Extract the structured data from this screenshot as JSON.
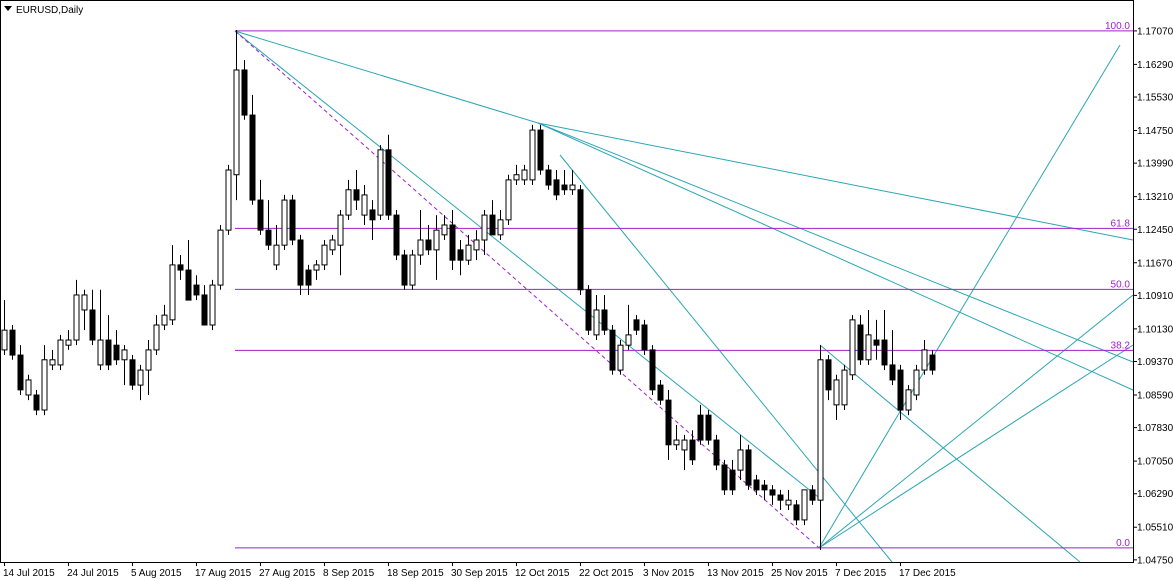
{
  "chart_data": {
    "type": "candlestick",
    "title": "EURUSD,Daily",
    "categories": [
      "14 Jul 2015",
      null,
      null,
      null,
      null,
      null,
      null,
      null,
      "24 Jul 2015",
      null,
      null,
      null,
      null,
      null,
      null,
      null,
      "5 Aug 2015",
      null,
      null,
      null,
      null,
      null,
      null,
      null,
      "17 Aug 2015",
      null,
      null,
      null,
      null,
      null,
      null,
      null,
      "27 Aug 2015",
      null,
      null,
      null,
      null,
      null,
      null,
      null,
      "8 Sep 2015",
      null,
      null,
      null,
      null,
      null,
      null,
      null,
      "18 Sep 2015",
      null,
      null,
      null,
      null,
      null,
      null,
      null,
      "30 Sep 2015",
      null,
      null,
      null,
      null,
      null,
      null,
      null,
      "12 Oct 2015",
      null,
      null,
      null,
      null,
      null,
      null,
      null,
      "22 Oct 2015",
      null,
      null,
      null,
      null,
      null,
      null,
      null,
      "3 Nov 2015",
      null,
      null,
      null,
      null,
      null,
      null,
      null,
      "13 Nov 2015",
      null,
      null,
      null,
      null,
      null,
      null,
      null,
      "25 Nov 2015",
      null,
      null,
      null,
      null,
      null,
      null,
      null,
      "7 Dec 2015",
      null,
      null,
      null,
      null,
      null,
      null,
      null,
      "17 Dec 2015",
      null,
      null,
      null,
      null
    ],
    "open": [
      1.0964,
      1.101,
      1.0952,
      1.0859,
      1.0859,
      1.0824,
      1.0929,
      1.0929,
      1.0975,
      1.0987,
      1.1057,
      1.1057,
      1.0929,
      1.0987,
      1.0975,
      1.0941,
      1.0941,
      1.0882,
      1.0917,
      1.0964,
      1.1022,
      1.1034,
      1.1162,
      1.115,
      1.1115,
      1.1092,
      1.1022,
      1.1115,
      1.1243,
      1.1372,
      1.1616,
      1.1511,
      1.1313,
      1.1243,
      1.1162,
      1.1208,
      1.1313,
      1.122,
      1.115,
      1.115,
      1.1162,
      1.1197,
      1.1208,
      1.1278,
      1.1337,
      1.1278,
      1.129,
      1.1278,
      1.143,
      1.1278,
      1.1185,
      1.1115,
      1.1185,
      1.122,
      1.1197,
      1.1232,
      1.1255,
      1.1197,
      1.1173,
      1.1197,
      1.122,
      1.1278,
      1.1232,
      1.1267,
      1.136,
      1.136,
      1.136,
      1.1476,
      1.1383,
      1.136,
      1.1348,
      1.1337,
      1.1337,
      1.1104,
      1.0999,
      1.1057,
      1.101,
      1.0917,
      1.0975,
      1.1034,
      1.1022,
      1.0964,
      1.0882,
      1.0847,
      1.0743,
      1.0731,
      1.0754,
      1.0812,
      1.0812,
      1.0754,
      1.0696,
      1.0684,
      1.0684,
      1.0731,
      1.0661,
      1.0649,
      1.0638,
      1.0626,
      1.0603,
      1.0603,
      1.0568,
      1.0638,
      1.0614,
      1.0941,
      1.0836,
      1.0836,
      1.0906,
      1.1022,
      1.0941,
      1.0987,
      1.0987,
      1.0929,
      1.0917,
      1.0824,
      1.0859,
      1.0917,
      1.0952
    ],
    "high": [
      1.108,
      1.1022,
      1.0975,
      1.0906,
      1.0871,
      1.0975,
      1.0964,
      1.0999,
      1.101,
      1.1127,
      1.1104,
      1.1104,
      1.1104,
      1.1045,
      1.101,
      1.0975,
      1.0952,
      1.0929,
      1.0987,
      1.1045,
      1.1069,
      1.1208,
      1.1185,
      1.122,
      1.1138,
      1.1115,
      1.1127,
      1.1255,
      1.1395,
      1.1709,
      1.1639,
      1.1558,
      1.136,
      1.1313,
      1.1255,
      1.1325,
      1.1325,
      1.1232,
      1.1162,
      1.1173,
      1.122,
      1.1232,
      1.129,
      1.136,
      1.1383,
      1.1348,
      1.1313,
      1.1441,
      1.1465,
      1.129,
      1.1197,
      1.1197,
      1.129,
      1.1255,
      1.1278,
      1.1278,
      1.129,
      1.122,
      1.1232,
      1.1243,
      1.129,
      1.1313,
      1.129,
      1.1372,
      1.1395,
      1.1395,
      1.1488,
      1.1488,
      1.1395,
      1.1383,
      1.1383,
      1.1383,
      1.1348,
      1.1115,
      1.1092,
      1.1092,
      1.1022,
      1.0987,
      1.1069,
      1.1045,
      1.1034,
      1.0975,
      1.0894,
      1.0871,
      1.0789,
      1.0766,
      1.0777,
      1.0836,
      1.0824,
      1.0766,
      1.0708,
      1.0708,
      1.0766,
      1.0743,
      1.0673,
      1.0661,
      1.0649,
      1.0638,
      1.0638,
      1.0614,
      1.0638,
      1.0649,
      1.0975,
      1.0952,
      1.0906,
      1.0929,
      1.1045,
      1.1045,
      1.1057,
      1.1034,
      1.1057,
      1.101,
      1.0929,
      1.0882,
      1.0929,
      1.0987,
      1.0964
    ],
    "low": [
      1.0952,
      1.0941,
      1.0859,
      1.0847,
      1.0812,
      1.0812,
      1.0917,
      1.0917,
      1.0964,
      1.0975,
      1.101,
      1.0975,
      1.0917,
      1.0917,
      1.0929,
      1.0882,
      1.0871,
      1.0847,
      1.0859,
      1.0952,
      1.101,
      1.1022,
      1.1127,
      1.108,
      1.108,
      1.1022,
      1.101,
      1.1104,
      1.1232,
      1.1313,
      1.15,
      1.1302,
      1.1232,
      1.1197,
      1.115,
      1.1197,
      1.1208,
      1.1092,
      1.1092,
      1.1127,
      1.115,
      1.1185,
      1.1138,
      1.1267,
      1.129,
      1.1255,
      1.122,
      1.1267,
      1.1267,
      1.1173,
      1.1104,
      1.1104,
      1.1162,
      1.1185,
      1.1127,
      1.122,
      1.115,
      1.1138,
      1.1162,
      1.1173,
      1.1185,
      1.1232,
      1.122,
      1.1255,
      1.1348,
      1.1348,
      1.1348,
      1.1372,
      1.1337,
      1.1313,
      1.1325,
      1.1325,
      1.1092,
      1.0999,
      1.0987,
      1.0999,
      1.0906,
      1.0906,
      1.0964,
      1.0999,
      1.0952,
      1.0859,
      1.0836,
      1.0708,
      1.0731,
      1.0684,
      1.0696,
      1.0743,
      1.0743,
      1.0684,
      1.0626,
      1.0626,
      1.0661,
      1.0638,
      1.0626,
      1.0614,
      1.0603,
      1.0591,
      1.0591,
      1.0556,
      1.0556,
      1.0603,
      1.0498,
      1.0847,
      1.0801,
      1.0824,
      1.0894,
      1.0929,
      1.0929,
      1.0941,
      1.0917,
      1.0882,
      1.0801,
      1.0812,
      1.0847,
      1.0906,
      1.0906
    ],
    "close": [
      1.101,
      1.0952,
      1.0871,
      1.0894,
      1.0824,
      1.0941,
      1.0941,
      1.0987,
      1.0987,
      1.1092,
      1.1092,
      1.0987,
      1.0987,
      1.0929,
      1.0941,
      1.0964,
      1.0882,
      1.0917,
      1.0964,
      1.1022,
      1.1045,
      1.1162,
      1.115,
      1.108,
      1.1092,
      1.1022,
      1.1115,
      1.1243,
      1.1383,
      1.1616,
      1.1511,
      1.1313,
      1.1243,
      1.1208,
      1.1208,
      1.1313,
      1.122,
      1.1115,
      1.1115,
      1.1162,
      1.1208,
      1.122,
      1.1278,
      1.1337,
      1.1313,
      1.1325,
      1.1267,
      1.143,
      1.1278,
      1.1185,
      1.1115,
      1.1185,
      1.122,
      1.1197,
      1.1243,
      1.1255,
      1.1173,
      1.1173,
      1.1208,
      1.122,
      1.1278,
      1.1232,
      1.1267,
      1.136,
      1.1372,
      1.1383,
      1.1476,
      1.1383,
      1.1348,
      1.1325,
      1.1337,
      1.1348,
      1.1104,
      1.101,
      1.1057,
      1.101,
      1.0917,
      1.0975,
      1.0999,
      1.101,
      1.0964,
      1.0871,
      1.0847,
      1.0743,
      1.0754,
      1.0754,
      1.0708,
      1.0754,
      1.0754,
      1.0696,
      1.0638,
      1.0638,
      1.0731,
      1.0649,
      1.0638,
      1.0638,
      1.0626,
      1.0614,
      1.0614,
      1.0568,
      1.0638,
      1.0614,
      1.0941,
      1.0871,
      1.0894,
      1.0917,
      1.1034,
      1.0941,
      1.0999,
      1.0975,
      1.0929,
      1.0894,
      1.0824,
      1.0871,
      1.0917,
      1.0964,
      1.0917
    ],
    "colors": {
      "up": "#ffffff",
      "down": "#000000",
      "wick": "#000000"
    },
    "ylim": [
      1.047,
      1.1779
    ],
    "yticks": [
      {
        "value": 1.1707,
        "label": "1.17070"
      },
      {
        "value": 1.1629,
        "label": "1.16290"
      },
      {
        "value": 1.1553,
        "label": "1.15530"
      },
      {
        "value": 1.1475,
        "label": "1.14750"
      },
      {
        "value": 1.1399,
        "label": "1.13990"
      },
      {
        "value": 1.1321,
        "label": "1.13210"
      },
      {
        "value": 1.1245,
        "label": "1.12450"
      },
      {
        "value": 1.1167,
        "label": "1.11670"
      },
      {
        "value": 1.1091,
        "label": "1.10910"
      },
      {
        "value": 1.1013,
        "label": "1.10130"
      },
      {
        "value": 1.0937,
        "label": "1.09370"
      },
      {
        "value": 1.0859,
        "label": "1.08590"
      },
      {
        "value": 1.0783,
        "label": "1.07830"
      },
      {
        "value": 1.0705,
        "label": "1.07050"
      },
      {
        "value": 1.0629,
        "label": "1.06290"
      },
      {
        "value": 1.0551,
        "label": "1.05510"
      },
      {
        "value": 1.0475,
        "label": "1.04750"
      }
    ],
    "fibonacci": {
      "high": 1.1707,
      "low": 1.0503,
      "color": "#a020c8",
      "levels": [
        {
          "value": 100,
          "label": "100.0"
        },
        {
          "value": 61.8,
          "label": "61.8"
        },
        {
          "value": 50,
          "label": "50.0"
        },
        {
          "value": 38.2,
          "label": "38.2"
        },
        {
          "value": 0,
          "label": "0.0"
        }
      ]
    }
  }
}
